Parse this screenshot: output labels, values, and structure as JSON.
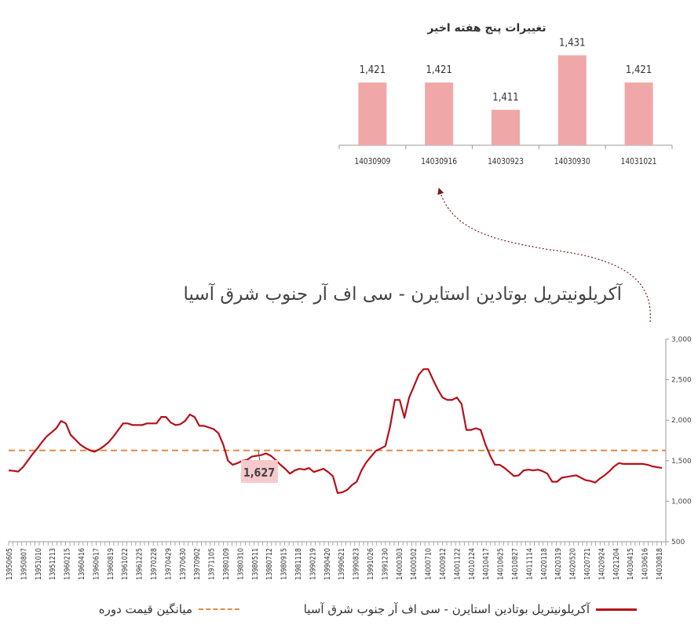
{
  "chart_data": [
    {
      "type": "bar",
      "title": "تغییرات پنج هفته اخیر",
      "categories": [
        "14030909",
        "14030916",
        "14030923",
        "14030930",
        "14031021"
      ],
      "values": [
        1421,
        1421,
        1411,
        1431,
        1421
      ],
      "value_labels": [
        "1,421",
        "1,421",
        "1,411",
        "1,431",
        "1,421"
      ],
      "ylim": [
        1398,
        1434
      ],
      "bar_color": "#f0a7a8"
    },
    {
      "type": "line",
      "title": "آکریلونیتریل بوتادین استایرن - سی اف آر جنوب شرق آسیا",
      "ylim": [
        500,
        3000
      ],
      "yticks": [
        "500",
        "1,000",
        "1,500",
        "2,000",
        "2,500",
        "3,000"
      ],
      "y_axis_position": "right",
      "legend_position": "bottom",
      "grid": false,
      "x_tick_labels": [
        "13950605",
        "13950807",
        "13951010",
        "13951213",
        "13960215",
        "13960416",
        "13960617",
        "13960819",
        "13961022",
        "13961225",
        "13970228",
        "13970429",
        "13970630",
        "13970902",
        "13971105",
        "13980109",
        "13980310",
        "13980511",
        "13980712",
        "13980915",
        "13981118",
        "13990219",
        "13990420",
        "13990621",
        "13990823",
        "13991026",
        "13991230",
        "14000303",
        "14000502",
        "14000710",
        "14000912",
        "14001122",
        "14010124",
        "14010417",
        "14010625",
        "14010827",
        "14011114",
        "14020118",
        "14020319",
        "14020520",
        "14020721",
        "14020924",
        "14021204",
        "14030415",
        "14030616",
        "14030818"
      ],
      "series": [
        {
          "name": "آکریلونیتریل بوتادین استایرن - سی اف آر جنوب شرق آسیا",
          "color": "#b5101a",
          "values": [
            1380,
            1375,
            1365,
            1420,
            1500,
            1580,
            1650,
            1730,
            1800,
            1850,
            1900,
            1990,
            1960,
            1820,
            1760,
            1700,
            1660,
            1630,
            1610,
            1640,
            1680,
            1730,
            1800,
            1880,
            1960,
            1960,
            1940,
            1940,
            1940,
            1960,
            1960,
            1960,
            2040,
            2040,
            1970,
            1940,
            1950,
            1990,
            2070,
            2040,
            1930,
            1930,
            1910,
            1890,
            1840,
            1700,
            1500,
            1450,
            1470,
            1500,
            1510,
            1550,
            1560,
            1570,
            1590,
            1560,
            1510,
            1450,
            1400,
            1340,
            1380,
            1400,
            1390,
            1410,
            1360,
            1380,
            1400,
            1360,
            1310,
            1100,
            1110,
            1140,
            1200,
            1240,
            1380,
            1480,
            1550,
            1620,
            1650,
            1680,
            1920,
            2250,
            2250,
            2030,
            2280,
            2420,
            2560,
            2630,
            2630,
            2500,
            2380,
            2280,
            2250,
            2250,
            2280,
            2200,
            1880,
            1880,
            1900,
            1880,
            1700,
            1560,
            1450,
            1450,
            1410,
            1360,
            1310,
            1320,
            1380,
            1390,
            1380,
            1390,
            1370,
            1340,
            1240,
            1240,
            1290,
            1300,
            1310,
            1320,
            1290,
            1260,
            1250,
            1230,
            1280,
            1320,
            1370,
            1430,
            1470,
            1460,
            1460,
            1460,
            1460,
            1460,
            1450,
            1430,
            1420,
            1410
          ]
        },
        {
          "name": "میانگین قیمت دوره",
          "color": "#e08a46",
          "style": "dashed",
          "values": [
            1627,
            1627
          ]
        }
      ],
      "annotations": [
        {
          "text": "1,627"
        }
      ]
    }
  ],
  "legend": {
    "price_label": "آکریلونیتریل بوتادین استایرن - سی اف آر جنوب شرق آسیا",
    "avg_label": "میانگین قیمت دوره"
  }
}
